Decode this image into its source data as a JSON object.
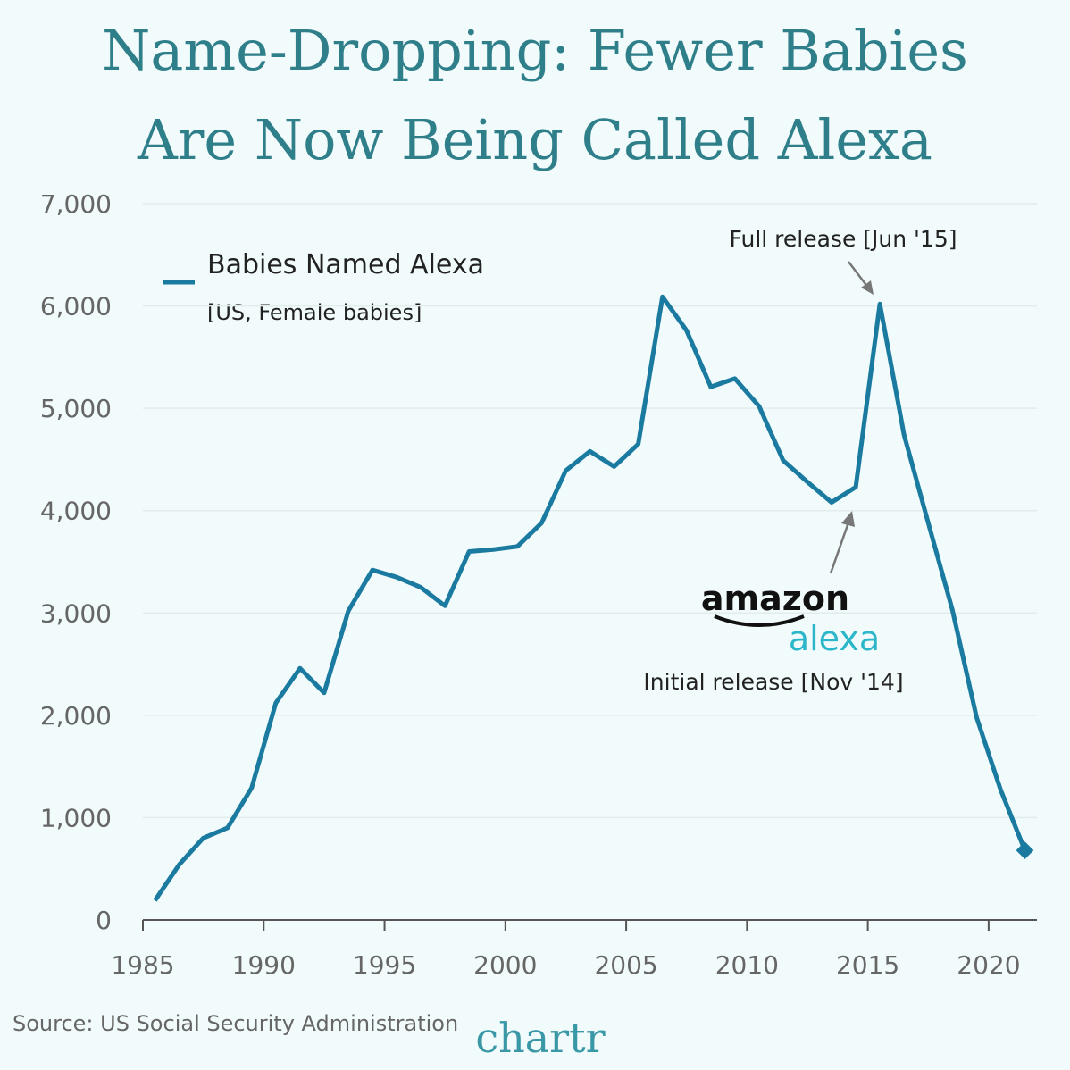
{
  "chart_data": {
    "type": "line",
    "title": [
      "Name-Dropping: Fewer Babies",
      "Are Now Being Called Alexa"
    ],
    "x": [
      1985,
      1986,
      1987,
      1988,
      1989,
      1990,
      1991,
      1992,
      1993,
      1994,
      1995,
      1996,
      1997,
      1998,
      1999,
      2000,
      2001,
      2002,
      2003,
      2004,
      2005,
      2006,
      2007,
      2008,
      2009,
      2010,
      2011,
      2012,
      2013,
      2014,
      2015,
      2016,
      2017,
      2018,
      2019,
      2020,
      2021
    ],
    "series": [
      {
        "name": "Babies Named Alexa",
        "subtitle": "[US, Female babies]",
        "color": "#1a7aa0",
        "values": [
          190,
          540,
          800,
          900,
          1290,
          2120,
          2460,
          2220,
          3020,
          3420,
          3350,
          3250,
          3070,
          3600,
          3620,
          3650,
          3880,
          4390,
          4580,
          4430,
          4650,
          6090,
          5760,
          5210,
          5290,
          5020,
          4490,
          4280,
          4080,
          4230,
          6020,
          4740,
          3880,
          3030,
          1980,
          1270,
          680
        ]
      }
    ],
    "xlim": [
      1985,
      2022
    ],
    "xticks": [
      1985,
      1990,
      1995,
      2000,
      2005,
      2010,
      2015,
      2020
    ],
    "ylim": [
      0,
      7000
    ],
    "yticks": [
      0,
      {
        "value": 1000,
        "label": "1,000"
      },
      {
        "value": 2000,
        "label": "2,000"
      },
      {
        "value": 3000,
        "label": "3,000"
      },
      {
        "value": 4000,
        "label": "4,000"
      },
      {
        "value": 5000,
        "label": "5,000"
      },
      {
        "value": 6000,
        "label": "6,000"
      },
      {
        "value": 7000,
        "label": "7,000"
      }
    ],
    "grid": true,
    "annotations": [
      {
        "text": "Full release [Jun '15]",
        "x": 2015
      },
      {
        "text": "Initial release [Nov '14]",
        "x": 2014,
        "logo": [
          "amazon",
          "alexa"
        ]
      }
    ],
    "source": "Source: US Social Security Administration",
    "brand": "chartr"
  }
}
